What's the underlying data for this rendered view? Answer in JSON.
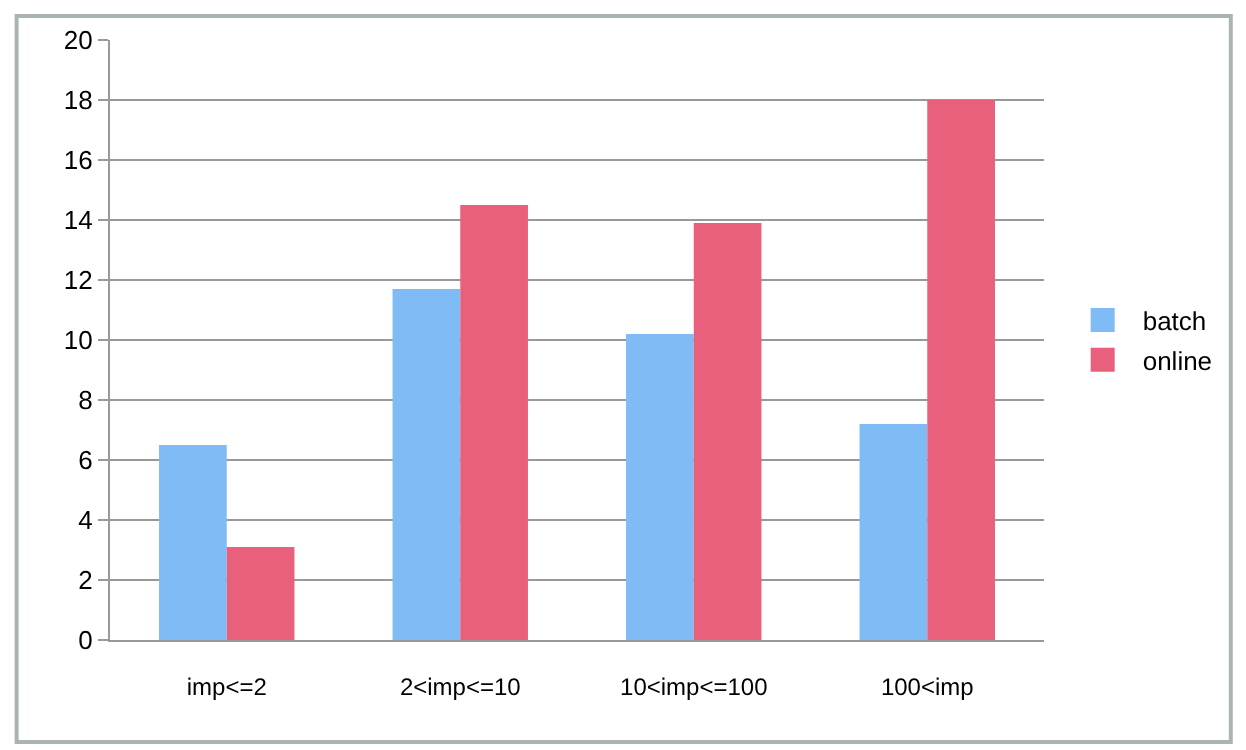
{
  "chart_data": {
    "type": "bar",
    "categories": [
      "imp<=2",
      "2<imp<=10",
      "10<imp<=100",
      "100<imp"
    ],
    "series": [
      {
        "name": "batch",
        "color": "#7fbcf5",
        "values": [
          6.5,
          11.7,
          10.2,
          7.2
        ]
      },
      {
        "name": "online",
        "color": "#e8607c",
        "values": [
          3.1,
          14.5,
          13.9,
          18.0
        ]
      }
    ],
    "ylim": [
      0,
      20
    ],
    "yticks": [
      0,
      2,
      4,
      6,
      8,
      10,
      12,
      14,
      16,
      18,
      20
    ],
    "grid": "y",
    "legend": "right"
  }
}
